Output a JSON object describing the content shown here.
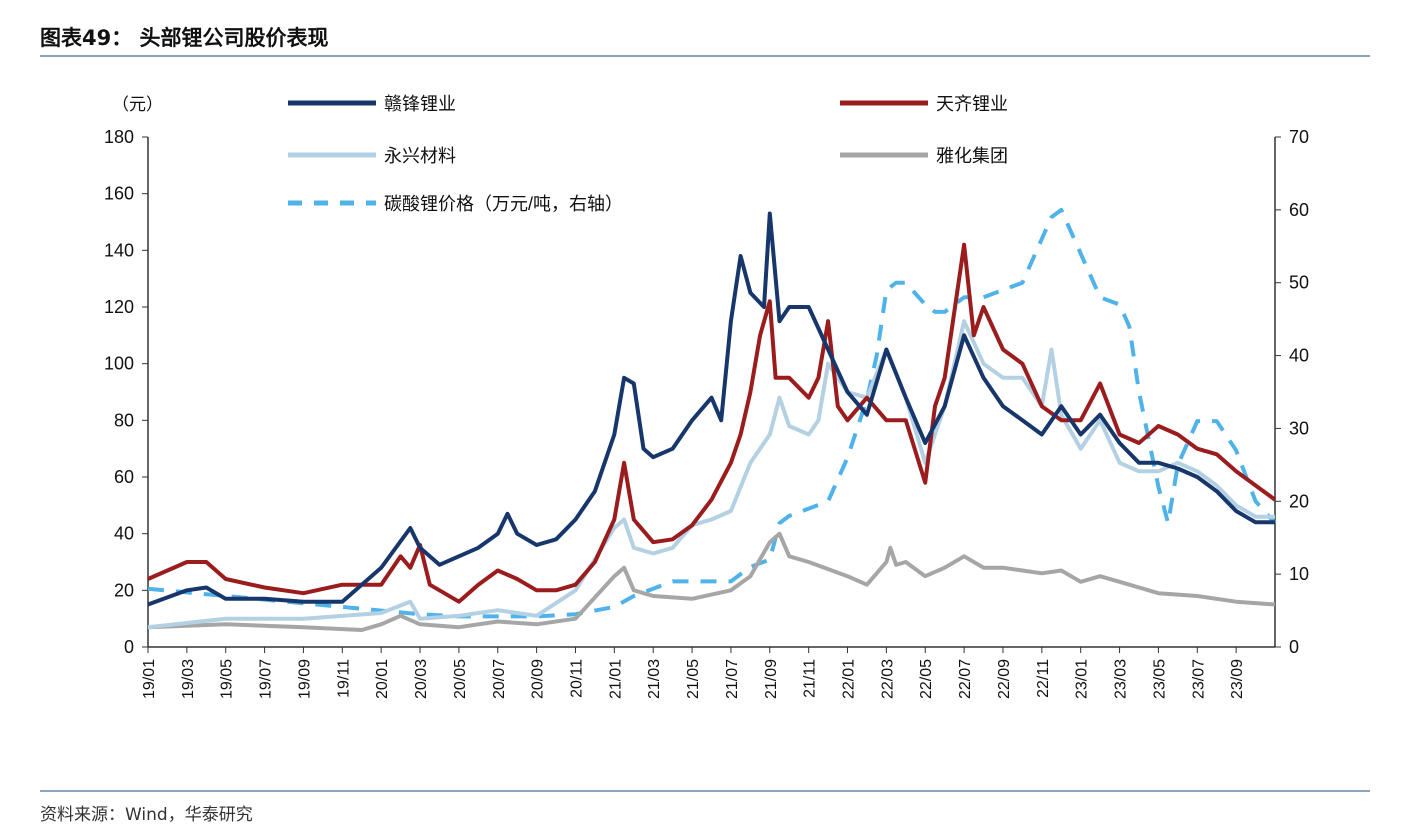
{
  "title": "图表49：  头部锂公司股价表现",
  "source": "资料来源：Wind，华泰研究",
  "chart_data": {
    "type": "line",
    "title": "头部锂公司股价表现",
    "ylabel": "（元）",
    "ylim": [
      0,
      180
    ],
    "y2lim": [
      0,
      70
    ],
    "yticks": [
      "0",
      "20",
      "40",
      "60",
      "80",
      "100",
      "120",
      "140",
      "160",
      "180"
    ],
    "y2ticks": [
      "0",
      "10",
      "20",
      "30",
      "40",
      "50",
      "60",
      "70"
    ],
    "x_unit": "months since 2019-01",
    "xlim": [
      0,
      58
    ],
    "xticks": [
      "19/01",
      "19/03",
      "19/05",
      "19/07",
      "19/09",
      "19/11",
      "20/01",
      "20/03",
      "20/05",
      "20/07",
      "20/09",
      "20/11",
      "21/01",
      "21/03",
      "21/05",
      "21/07",
      "21/09",
      "21/11",
      "22/01",
      "22/03",
      "22/05",
      "22/07",
      "22/09",
      "22/11",
      "23/01",
      "23/03",
      "23/05",
      "23/07",
      "23/09"
    ],
    "legend_placement": "top",
    "series": [
      {
        "name": "赣锋锂业",
        "color": "#17366b",
        "axis": "left",
        "dash": false,
        "x": [
          0,
          2,
          3,
          4,
          6,
          8,
          10,
          12,
          13.5,
          14,
          15,
          16,
          17,
          18,
          18.5,
          19,
          20,
          21,
          22,
          23,
          24,
          24.5,
          25,
          25.5,
          26,
          27,
          28,
          29,
          29.5,
          30,
          30.5,
          31,
          31.7,
          32,
          32.5,
          33,
          34,
          35,
          36,
          37,
          38,
          39,
          40,
          41,
          42,
          43,
          44,
          45,
          46,
          47,
          48,
          49,
          50,
          51,
          52,
          53,
          54,
          55,
          56,
          57,
          58
        ],
        "y": [
          15,
          20,
          21,
          17,
          17,
          16,
          16,
          28,
          42,
          35,
          29,
          32,
          35,
          40,
          47,
          40,
          36,
          38,
          45,
          55,
          75,
          95,
          93,
          70,
          67,
          70,
          80,
          88,
          80,
          115,
          138,
          125,
          120,
          153,
          115,
          120,
          120,
          105,
          90,
          82,
          105,
          88,
          72,
          85,
          110,
          95,
          85,
          80,
          75,
          85,
          75,
          82,
          72,
          65,
          65,
          63,
          60,
          55,
          48,
          44,
          44
        ]
      },
      {
        "name": "天齐锂业",
        "color": "#9b1c1c",
        "axis": "left",
        "dash": false,
        "x": [
          0,
          2,
          3,
          4,
          6,
          8,
          10,
          12,
          13,
          13.5,
          14,
          14.5,
          15,
          16,
          17,
          18,
          19,
          20,
          21,
          22,
          23,
          24,
          24.5,
          25,
          26,
          27,
          28,
          29,
          30,
          30.5,
          31,
          31.5,
          32,
          32.3,
          33,
          34,
          34.5,
          35,
          35.5,
          36,
          37,
          38,
          39,
          40,
          40.5,
          41,
          42,
          42.5,
          43,
          44,
          45,
          46,
          47,
          48,
          49,
          50,
          51,
          52,
          53,
          54,
          55,
          56,
          57,
          58
        ],
        "y": [
          24,
          30,
          30,
          24,
          21,
          19,
          22,
          22,
          32,
          28,
          36,
          22,
          20,
          16,
          22,
          27,
          24,
          20,
          20,
          22,
          30,
          45,
          65,
          45,
          37,
          38,
          43,
          52,
          65,
          75,
          90,
          110,
          122,
          95,
          95,
          88,
          95,
          115,
          85,
          80,
          88,
          80,
          80,
          58,
          85,
          95,
          142,
          110,
          120,
          105,
          100,
          85,
          80,
          80,
          93,
          75,
          72,
          78,
          75,
          70,
          68,
          62,
          57,
          52
        ]
      },
      {
        "name": "永兴材料",
        "color": "#b3d1e3",
        "axis": "left",
        "dash": false,
        "x": [
          0,
          4,
          8,
          12,
          13.5,
          14,
          16,
          18,
          20,
          22,
          24,
          24.5,
          25,
          26,
          27,
          28,
          29,
          30,
          31,
          32,
          32.5,
          33,
          34,
          34.5,
          35,
          36,
          37,
          38,
          39,
          40,
          41,
          42,
          43,
          44,
          45,
          46,
          46.5,
          47,
          48,
          49,
          50,
          51,
          52,
          53,
          54,
          55,
          56,
          57,
          58
        ],
        "y": [
          7,
          10,
          10,
          12,
          16,
          10,
          11,
          13,
          11,
          20,
          42,
          45,
          35,
          33,
          35,
          43,
          45,
          48,
          65,
          75,
          88,
          78,
          75,
          80,
          100,
          90,
          88,
          105,
          88,
          65,
          85,
          115,
          100,
          95,
          95,
          85,
          105,
          82,
          70,
          80,
          65,
          62,
          62,
          65,
          62,
          57,
          50,
          46,
          46
        ]
      },
      {
        "name": "雅化集团",
        "color": "#a6a6a6",
        "axis": "left",
        "dash": false,
        "x": [
          0,
          4,
          8,
          11,
          12,
          13,
          14,
          16,
          18,
          20,
          22,
          24,
          24.5,
          25,
          26,
          28,
          30,
          31,
          32,
          32.5,
          33,
          34,
          36,
          37,
          38,
          38.2,
          38.5,
          39,
          40,
          41,
          42,
          43,
          44,
          46,
          47,
          48,
          49,
          50,
          51,
          52,
          54,
          56,
          58
        ],
        "y": [
          7,
          8,
          7,
          6,
          8,
          11,
          8,
          7,
          9,
          8,
          10,
          25,
          28,
          20,
          18,
          17,
          20,
          25,
          37,
          40,
          32,
          30,
          25,
          22,
          30,
          35,
          29,
          30,
          25,
          28,
          32,
          28,
          28,
          26,
          27,
          23,
          25,
          23,
          21,
          19,
          18,
          16,
          15
        ]
      },
      {
        "name": "碳酸锂价格（万元/吨，右轴）",
        "color": "#4fb3ea",
        "axis": "right",
        "dash": true,
        "x": [
          0,
          2,
          4,
          6,
          8,
          10,
          12,
          14,
          16,
          18,
          20,
          22,
          24,
          25,
          26,
          27,
          29,
          30,
          31,
          32,
          32.5,
          33,
          34,
          35,
          36,
          37,
          37.5,
          38,
          38.5,
          39,
          40,
          40.5,
          41,
          42,
          43,
          44,
          45,
          46,
          46.5,
          47,
          48,
          49,
          50,
          50.5,
          51,
          52,
          52.5,
          53,
          54,
          55,
          56,
          57,
          58
        ],
        "y": [
          8,
          7.5,
          7,
          6.5,
          6,
          5.5,
          5,
          4.5,
          4.2,
          4.2,
          4.2,
          4.5,
          5.5,
          7,
          8,
          9,
          9,
          9,
          11,
          12,
          17,
          18,
          19,
          20,
          26,
          34,
          40,
          49,
          50,
          50,
          47,
          46,
          46,
          48,
          48,
          49,
          50,
          56,
          59,
          60,
          54,
          48,
          47,
          44,
          35,
          22,
          17,
          25,
          31,
          31,
          27,
          20,
          17
        ]
      }
    ]
  }
}
